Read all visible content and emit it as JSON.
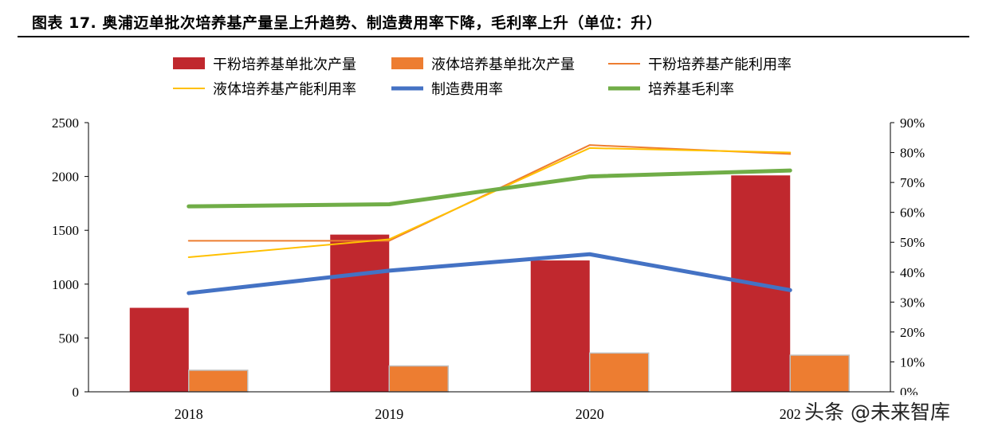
{
  "header": {
    "title": "图表 17. 奥浦迈单批次培养基产量呈上升趋势、制造费用率下降，毛利率上升（单位：升）"
  },
  "watermark": {
    "text": "头条 @未来智库"
  },
  "colors": {
    "dry_bar": "#C0282E",
    "liquid_bar": "#ED7D31",
    "dry_util": "#ED7D31",
    "liquid_util": "#FFC000",
    "mfg_rate": "#4472C4",
    "gross_margin": "#70AD47"
  },
  "chart_data": {
    "type": "bar",
    "categories": [
      "2018",
      "2019",
      "2020",
      "202"
    ],
    "left_axis": {
      "ylim": [
        0,
        2500
      ],
      "ticks": [
        "0",
        "500",
        "1000",
        "1500",
        "2000",
        "2500"
      ]
    },
    "right_axis": {
      "ylim": [
        0,
        90
      ],
      "ticks": [
        "0%",
        "10%",
        "20%",
        "30%",
        "40%",
        "50%",
        "60%",
        "70%",
        "80%",
        "90%"
      ]
    },
    "legend_placement": "top",
    "grid": false,
    "bar_series": [
      {
        "name": "干粉培养基单批次产量",
        "axis": "left",
        "color_key": "dry_bar",
        "values": [
          780,
          1460,
          1220,
          2010
        ]
      },
      {
        "name": "液体培养基单批次产量",
        "axis": "left",
        "color_key": "liquid_bar",
        "values": [
          200,
          240,
          360,
          340
        ]
      }
    ],
    "line_series": [
      {
        "name": "干粉培养基产能利用率",
        "axis": "right",
        "color_key": "dry_util",
        "width": 2,
        "values": [
          50.5,
          50.5,
          82.5,
          79.5
        ]
      },
      {
        "name": "液体培养基产能利用率",
        "axis": "right",
        "color_key": "liquid_util",
        "width": 2,
        "values": [
          45,
          51,
          81.5,
          80
        ]
      },
      {
        "name": "制造费用率",
        "axis": "right",
        "color_key": "mfg_rate",
        "width": 5,
        "values": [
          33,
          40.5,
          46,
          34
        ]
      },
      {
        "name": "培养基毛利率",
        "axis": "right",
        "color_key": "gross_margin",
        "width": 5,
        "values": [
          62,
          62.7,
          72,
          74
        ]
      }
    ]
  }
}
